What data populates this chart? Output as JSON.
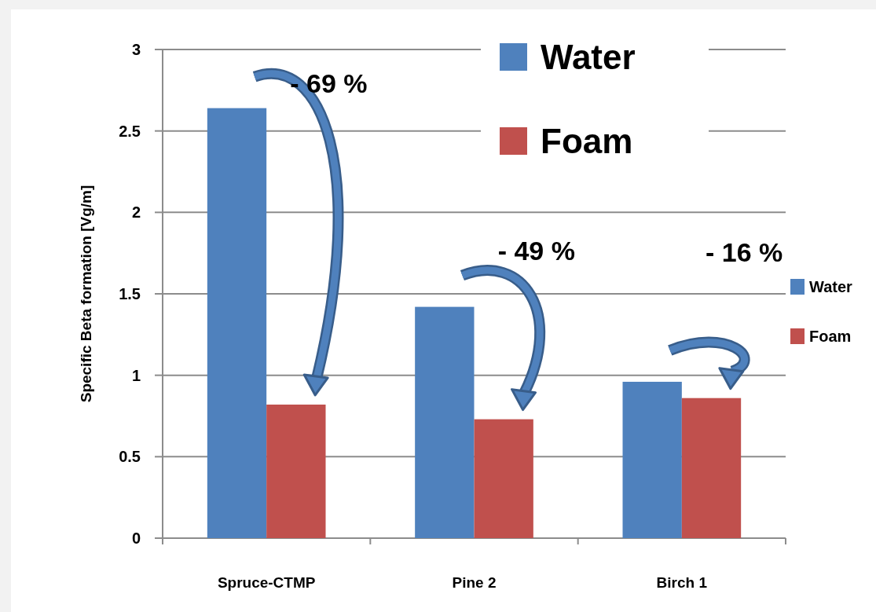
{
  "chart_data": {
    "type": "bar",
    "ylabel": "Specific Beta formation [Vg/m]",
    "categories": [
      "Spruce-CTMP",
      "Pine 2",
      "Birch 1"
    ],
    "series": [
      {
        "name": "Water",
        "color": "#4f81bd",
        "values": [
          2.64,
          1.42,
          0.96
        ]
      },
      {
        "name": "Foam",
        "color": "#c0504d",
        "values": [
          0.82,
          0.73,
          0.86
        ]
      }
    ],
    "ylim": [
      0,
      3
    ],
    "yticks": [
      0,
      0.5,
      1,
      1.5,
      2,
      2.5,
      3
    ],
    "grid": "y",
    "legend": "right",
    "annotations": [
      "- 69 %",
      "- 49 %",
      "- 16 %"
    ]
  }
}
